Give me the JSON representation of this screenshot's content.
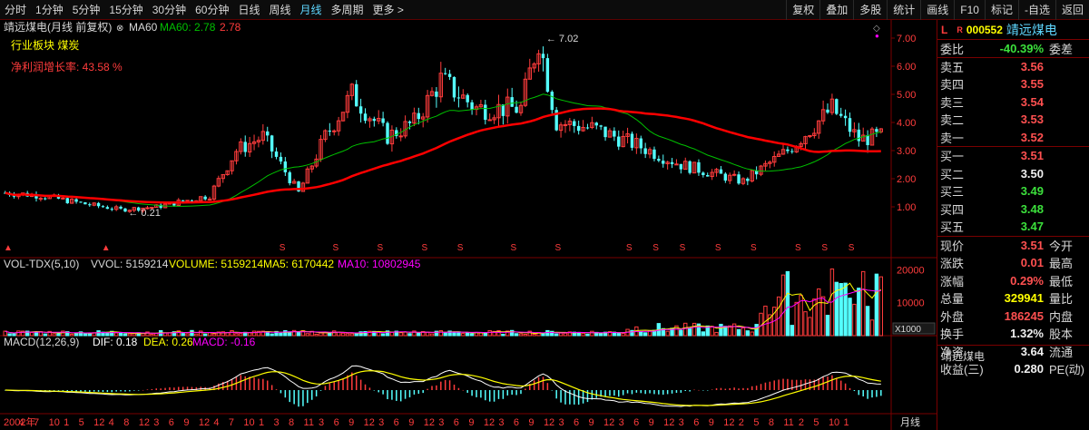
{
  "toolbar": {
    "left_tabs": [
      "分时",
      "1分钟",
      "5分钟",
      "15分钟",
      "30分钟",
      "60分钟",
      "日线",
      "周线",
      "月线",
      "多周期",
      "更多 >"
    ],
    "active_tab": "月线",
    "right_tabs": [
      "复权",
      "叠加",
      "多股",
      "统计",
      "画线",
      "F10",
      "标记",
      "-自选",
      "返回"
    ]
  },
  "kline": {
    "header": "靖远煤电(月线 前复权)",
    "ma60_label": "MA60",
    "ma60_value": "MA60: 2.78",
    "ma60_extra": "2.78",
    "sector": "行业板块 煤炭",
    "profit_growth": "净利润增长率: 43.58 %",
    "y_ticks": [
      "7.00",
      "6.00",
      "5.00",
      "4.00",
      "3.00",
      "2.00",
      "1.00"
    ],
    "high_label": "7.02",
    "low_label": "0.21"
  },
  "volume": {
    "header": "VOL-TDX(5,10)",
    "vvol": "VVOL: 5159214",
    "volume": "VOLUME: 5159214",
    "ma5": "MA5: 6170442",
    "ma10": "MA10: 10802945",
    "y_ticks": [
      "20000",
      "10000"
    ],
    "unit": "X1000"
  },
  "macd": {
    "header": "MACD(12,26,9)",
    "dif": "DIF: 0.18",
    "dea": "DEA: 0.26",
    "macd": "MACD: -0.16"
  },
  "x_axis": {
    "labels": [
      "2002年",
      "4",
      "7",
      "10",
      "1",
      "5",
      "12",
      "4",
      "8",
      "12",
      "3",
      "6",
      "9",
      "12",
      "4",
      "7",
      "10",
      "1",
      "3",
      "8",
      "11",
      "3",
      "6",
      "9",
      "12",
      "3",
      "6",
      "9",
      "12",
      "3",
      "6",
      "9",
      "12",
      "3",
      "6",
      "9",
      "12",
      "3",
      "6",
      "9",
      "12",
      "3",
      "6",
      "9",
      "12",
      "3",
      "6",
      "9",
      "12",
      "2",
      "5",
      "8",
      "11",
      "2",
      "5",
      "10",
      "1"
    ],
    "period": "月线"
  },
  "quote": {
    "flag": "L",
    "r_mark": "R",
    "code": "000552",
    "name": "靖远煤电",
    "weibi_label": "委比",
    "weibi_value": "-40.39%",
    "weicha_label": "委差",
    "asks": [
      {
        "label": "卖五",
        "price": "3.56"
      },
      {
        "label": "卖四",
        "price": "3.55"
      },
      {
        "label": "卖三",
        "price": "3.54"
      },
      {
        "label": "卖二",
        "price": "3.53"
      },
      {
        "label": "卖一",
        "price": "3.52"
      }
    ],
    "bids": [
      {
        "label": "买一",
        "price": "3.51",
        "color": "red"
      },
      {
        "label": "买二",
        "price": "3.50",
        "color": "white"
      },
      {
        "label": "买三",
        "price": "3.49",
        "color": "green"
      },
      {
        "label": "买四",
        "price": "3.48",
        "color": "green"
      },
      {
        "label": "买五",
        "price": "3.47",
        "color": "green"
      }
    ],
    "stats": [
      {
        "label": "现价",
        "value": "3.51",
        "color": "red",
        "label2": "今开"
      },
      {
        "label": "涨跌",
        "value": "0.01",
        "color": "red",
        "label2": "最高"
      },
      {
        "label": "涨幅",
        "value": "0.29%",
        "color": "red",
        "label2": "最低"
      },
      {
        "label": "总量",
        "value": "329941",
        "color": "yellow",
        "label2": "量比"
      },
      {
        "label": "外盘",
        "value": "186245",
        "color": "red",
        "label2": "内盘"
      },
      {
        "label": "换手",
        "value": "1.32%",
        "color": "white",
        "label2": "股本"
      },
      {
        "label": "净资",
        "value": "3.64",
        "color": "white",
        "label2": "流通"
      },
      {
        "label": "收益(三)",
        "value": "0.280",
        "color": "white",
        "label2": "PE(动)"
      }
    ],
    "bottom_name": "靖远煤电"
  },
  "colors": {
    "up": "#ff3c3c",
    "down": "#54ffff",
    "ma_red": "#ff0000",
    "ma_green": "#00c000",
    "dif": "#ffffff",
    "dea": "#ffff00",
    "vol_ma5": "#ffff00",
    "vol_ma10": "#ff00ff",
    "grid": "#7a0000"
  }
}
